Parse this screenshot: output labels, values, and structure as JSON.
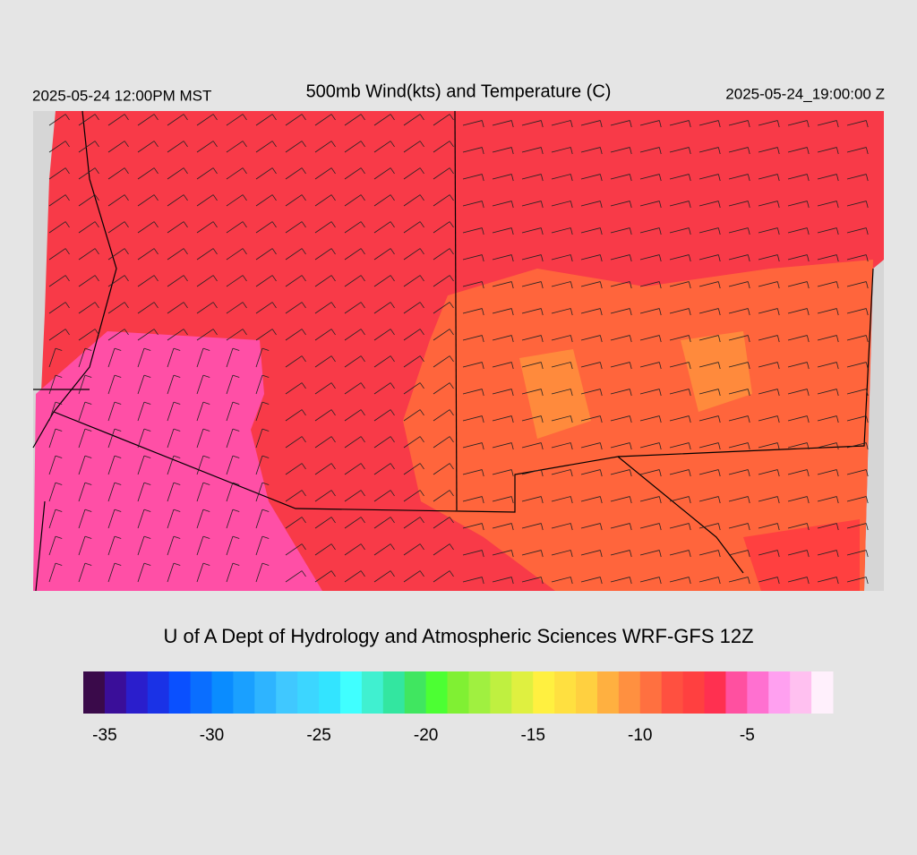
{
  "header": {
    "left": "2025-05-24 12:00PM MST",
    "title": "500mb Wind(kts) and Temperature (C)",
    "right": "2025-05-24_19:00:00 Z"
  },
  "credit": "U of A Dept of Hydrology and Atmospheric Sciences WRF-GFS 12Z",
  "colorbar": {
    "lim": [
      -36,
      -1
    ],
    "ticks": [
      -35,
      -30,
      -25,
      -20,
      -15,
      -10,
      -5
    ],
    "colors": [
      "#3a0a4a",
      "#3a0e99",
      "#2a1ecc",
      "#1a32e6",
      "#0a50ff",
      "#0a6eff",
      "#0a8cff",
      "#1aa0ff",
      "#2eb4ff",
      "#40c8ff",
      "#3cd6ff",
      "#33e4ff",
      "#40ffff",
      "#40f0d0",
      "#33e6a0",
      "#40e660",
      "#4cff33",
      "#80f033",
      "#a0f040",
      "#bff040",
      "#dff040",
      "#fff040",
      "#ffe040",
      "#ffd040",
      "#ffb040",
      "#ff9040",
      "#ff7040",
      "#ff5040",
      "#ff4040",
      "#ff3050",
      "#ff50a0",
      "#ff70d0",
      "#ffa0f0",
      "#ffc0f0",
      "#fff0fc"
    ]
  }
}
